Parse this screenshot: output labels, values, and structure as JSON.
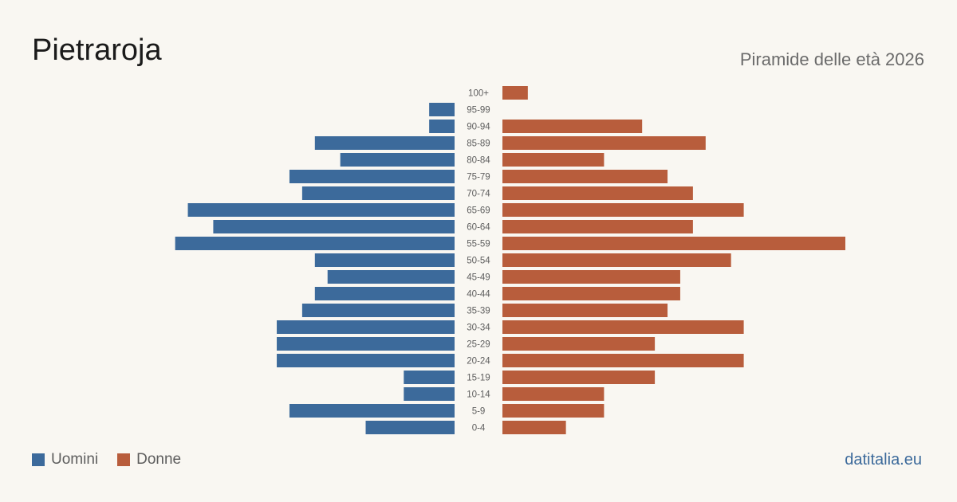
{
  "header": {
    "title": "Pietraroja",
    "subtitle": "Piramide delle età 2026"
  },
  "legend": {
    "men_label": "Uomini",
    "women_label": "Donne"
  },
  "footer": {
    "source": "datitalia.eu"
  },
  "colors": {
    "men": "#3c6a9b",
    "women": "#b85d3c",
    "label": "#5e5e5e"
  },
  "chart_data": {
    "type": "bar",
    "orientation": "horizontal-population-pyramid",
    "categories": [
      "100+",
      "95-99",
      "90-94",
      "85-89",
      "80-84",
      "75-79",
      "70-74",
      "65-69",
      "60-64",
      "55-59",
      "50-54",
      "45-49",
      "40-44",
      "35-39",
      "30-34",
      "25-29",
      "20-24",
      "15-19",
      "10-14",
      "5-9",
      "0-4"
    ],
    "series": [
      {
        "name": "Uomini",
        "values": [
          0,
          2,
          2,
          11,
          9,
          13,
          12,
          21,
          19,
          22,
          11,
          10,
          11,
          12,
          14,
          14,
          14,
          4,
          4,
          13,
          7
        ]
      },
      {
        "name": "Donne",
        "values": [
          2,
          0,
          11,
          16,
          8,
          13,
          15,
          19,
          15,
          27,
          18,
          14,
          14,
          13,
          19,
          12,
          19,
          12,
          8,
          8,
          5
        ]
      }
    ],
    "xlim": [
      0,
      27
    ],
    "legend_position": "bottom-left",
    "grid": false
  }
}
